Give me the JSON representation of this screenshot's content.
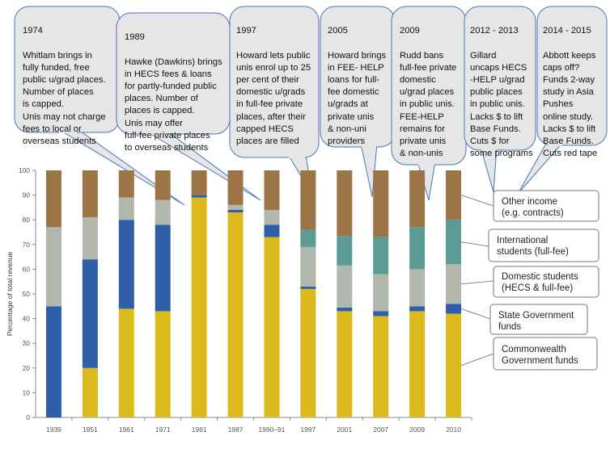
{
  "chart_data": {
    "type": "bar",
    "stacked": true,
    "ylabel": "Percentage of total revenue",
    "ylim": [
      0,
      100
    ],
    "yticks": [
      0,
      10,
      20,
      30,
      40,
      50,
      60,
      70,
      80,
      90,
      100
    ],
    "grid": false,
    "categories": [
      "1939",
      "1951",
      "1961",
      "1971",
      "1981",
      "1987",
      "1990–91",
      "1997",
      "2001",
      "2007",
      "2009",
      "2010"
    ],
    "series": [
      {
        "name": "Commonwealth Government funds",
        "color": "#dcb91d",
        "values": [
          0,
          20,
          44,
          43,
          89,
          83,
          73,
          52,
          43,
          41,
          43,
          42
        ]
      },
      {
        "name": "State Government funds",
        "color": "#2f5fa6",
        "values": [
          45,
          44,
          36,
          35,
          1,
          1,
          5,
          1,
          1.5,
          2,
          2,
          4
        ]
      },
      {
        "name": "Domestic students (HECS & full-fee)",
        "color": "#b2b7ae",
        "values": [
          32,
          17,
          9,
          10,
          0,
          2,
          6,
          16,
          17,
          15,
          15,
          16
        ]
      },
      {
        "name": "International students (full-fee)",
        "color": "#5c9b94",
        "values": [
          0,
          0,
          0,
          0,
          0,
          0,
          0,
          7,
          12,
          15,
          17,
          18
        ]
      },
      {
        "name": "Other income (e.g. contracts)",
        "color": "#9c7546",
        "values": [
          23,
          19,
          11,
          12,
          10,
          14,
          16,
          24,
          26.5,
          27,
          23,
          20
        ]
      }
    ]
  },
  "legend_boxes": [
    {
      "text": "Other income\n(e.g. contracts)",
      "series": "Other income (e.g. contracts)"
    },
    {
      "text": "International\nstudents  (full-fee)",
      "series": "International students (full-fee)"
    },
    {
      "text": "Domestic students\n(HECS & full-fee)",
      "series": "Domestic students (HECS & full-fee)"
    },
    {
      "text": "State Government\nfunds",
      "series": "State Government funds"
    },
    {
      "text": "Commonwealth\nGovernment  funds",
      "series": "Commonwealth Government funds"
    }
  ],
  "bubbles": [
    {
      "year": "1974",
      "text": "Whitlam brings in\nfully funded, free\npublic u/grad places.\nNumber of places\nis capped.\nUnis may not charge\nfees to local or\noverseas students"
    },
    {
      "year": "1989",
      "text": "Hawke (Dawkins) brings\nin HECS fees & loans\nfor partly-funded public\nplaces. Number of\nplaces is capped.\nUnis may offer\nfull-fee private places\nto overseas students"
    },
    {
      "year": "1997",
      "text": "Howard  lets public\nunis enrol up to 25\nper cent of their\ndomestic u/grads\nin full-fee private\nplaces, after their\ncapped HECS\nplaces are filled"
    },
    {
      "year": "2005",
      "text": "Howard brings\nin FEE- HELP\nloans for full-\nfee domestic\nu/grads at\nprivate unis\n& non-uni\nproviders"
    },
    {
      "year": "2009",
      "text": "Rudd bans\nfull-fee private\ndomestic\nu/grad places\nin public unis.\nFEE-HELP\nremains for\nprivate unis\n& non-unis"
    },
    {
      "year": "2012 - 2013",
      "text": "Gillard\nuncaps HECS\n-HELP u/grad\npublic places\nin public unis.\nLacks $ to lift\nBase Funds.\nCuts $ for\nsome programs"
    },
    {
      "year": "2014 - 2015",
      "text": "Abbott keeps\ncaps off?\nFunds 2-way\nstudy in Asia\nPushes\nonline study.\nLacks $ to lift\nBase Funds.\nCuts red tape"
    }
  ]
}
